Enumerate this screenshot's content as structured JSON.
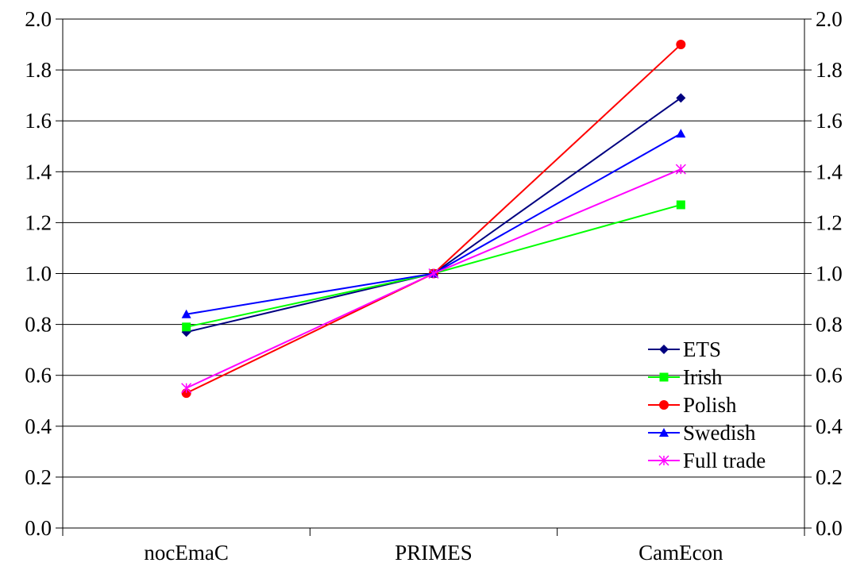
{
  "chart_data": {
    "type": "line",
    "categories": [
      "nocEmaC",
      "PRIMES",
      "CamEcon"
    ],
    "ylim": [
      0,
      2.0
    ],
    "yticks": [
      "0.0",
      "0.2",
      "0.4",
      "0.6",
      "0.8",
      "1.0",
      "1.2",
      "1.4",
      "1.6",
      "1.8",
      "2.0"
    ],
    "grid": true,
    "secondary_y_axis": true,
    "legend_position": "bottom-right",
    "series": [
      {
        "name": "ETS",
        "values": [
          0.77,
          1.0,
          1.69
        ],
        "color": "#000080",
        "marker": "diamond"
      },
      {
        "name": "Irish",
        "values": [
          0.79,
          1.0,
          1.27
        ],
        "color": "#00ff00",
        "marker": "square"
      },
      {
        "name": "Polish",
        "values": [
          0.53,
          1.0,
          1.9
        ],
        "color": "#ff0000",
        "marker": "circle"
      },
      {
        "name": "Swedish",
        "values": [
          0.84,
          1.0,
          1.55
        ],
        "color": "#0000ff",
        "marker": "triangle"
      },
      {
        "name": "Full trade",
        "values": [
          0.55,
          1.0,
          1.41
        ],
        "color": "#ff00ff",
        "marker": "asterisk"
      }
    ]
  }
}
